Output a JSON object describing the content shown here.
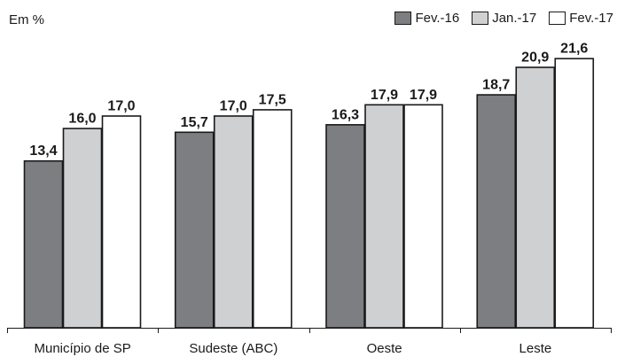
{
  "unit_label": "Em %",
  "chart_data": {
    "type": "bar",
    "categories": [
      "Município de SP",
      "Sudeste (ABC)",
      "Oeste",
      "Leste"
    ],
    "series": [
      {
        "name": "Fev.-16",
        "values": [
          13.4,
          15.7,
          16.3,
          18.7
        ],
        "labels": [
          "13,4",
          "15,7",
          "16,3",
          "18,7"
        ],
        "color": "#7d7e82"
      },
      {
        "name": "Jan.-17",
        "values": [
          16.0,
          17.0,
          17.9,
          20.9
        ],
        "labels": [
          "16,0",
          "17,0",
          "17,9",
          "20,9"
        ],
        "color": "#cfd0d2"
      },
      {
        "name": "Fev.-17",
        "values": [
          17.0,
          17.5,
          17.9,
          21.6
        ],
        "labels": [
          "17,0",
          "17,5",
          "17,9",
          "21,6"
        ],
        "color": "#ffffff"
      }
    ],
    "ylim": [
      0,
      24.7
    ],
    "legend_position": "top-right",
    "grid": false
  }
}
